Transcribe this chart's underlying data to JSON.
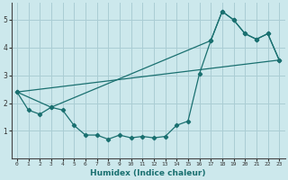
{
  "xlabel": "Humidex (Indice chaleur)",
  "ylabel": "",
  "xlim": [
    -0.5,
    23.5
  ],
  "ylim": [
    0.0,
    5.6
  ],
  "xticks": [
    0,
    1,
    2,
    3,
    4,
    5,
    6,
    7,
    8,
    9,
    10,
    11,
    12,
    13,
    14,
    15,
    16,
    17,
    18,
    19,
    20,
    21,
    22,
    23
  ],
  "yticks": [
    1,
    2,
    3,
    4,
    5
  ],
  "background_color": "#cce8ec",
  "grid_color": "#aacdd4",
  "line_color": "#1a7070",
  "series1_x": [
    0,
    1,
    2,
    3,
    4,
    5,
    6,
    7,
    8,
    9,
    10,
    11,
    12,
    13,
    14,
    15,
    16,
    17,
    18,
    19,
    20,
    21,
    22,
    23
  ],
  "series1_y": [
    2.4,
    1.75,
    1.6,
    1.85,
    1.75,
    1.2,
    0.85,
    0.85,
    0.7,
    0.85,
    0.75,
    0.8,
    0.75,
    0.8,
    1.2,
    1.35,
    3.05,
    4.25,
    5.3,
    5.0,
    4.5,
    4.3,
    4.5,
    3.55
  ],
  "series2_x": [
    0,
    3,
    17,
    18,
    19,
    20,
    21,
    22,
    23
  ],
  "series2_y": [
    2.4,
    1.85,
    4.25,
    5.3,
    5.0,
    4.5,
    4.3,
    4.5,
    3.55
  ],
  "series3_x": [
    0,
    23
  ],
  "series3_y": [
    2.4,
    3.55
  ],
  "xtick_fontsize": 4.5,
  "ytick_fontsize": 5.5,
  "xlabel_fontsize": 6.5
}
